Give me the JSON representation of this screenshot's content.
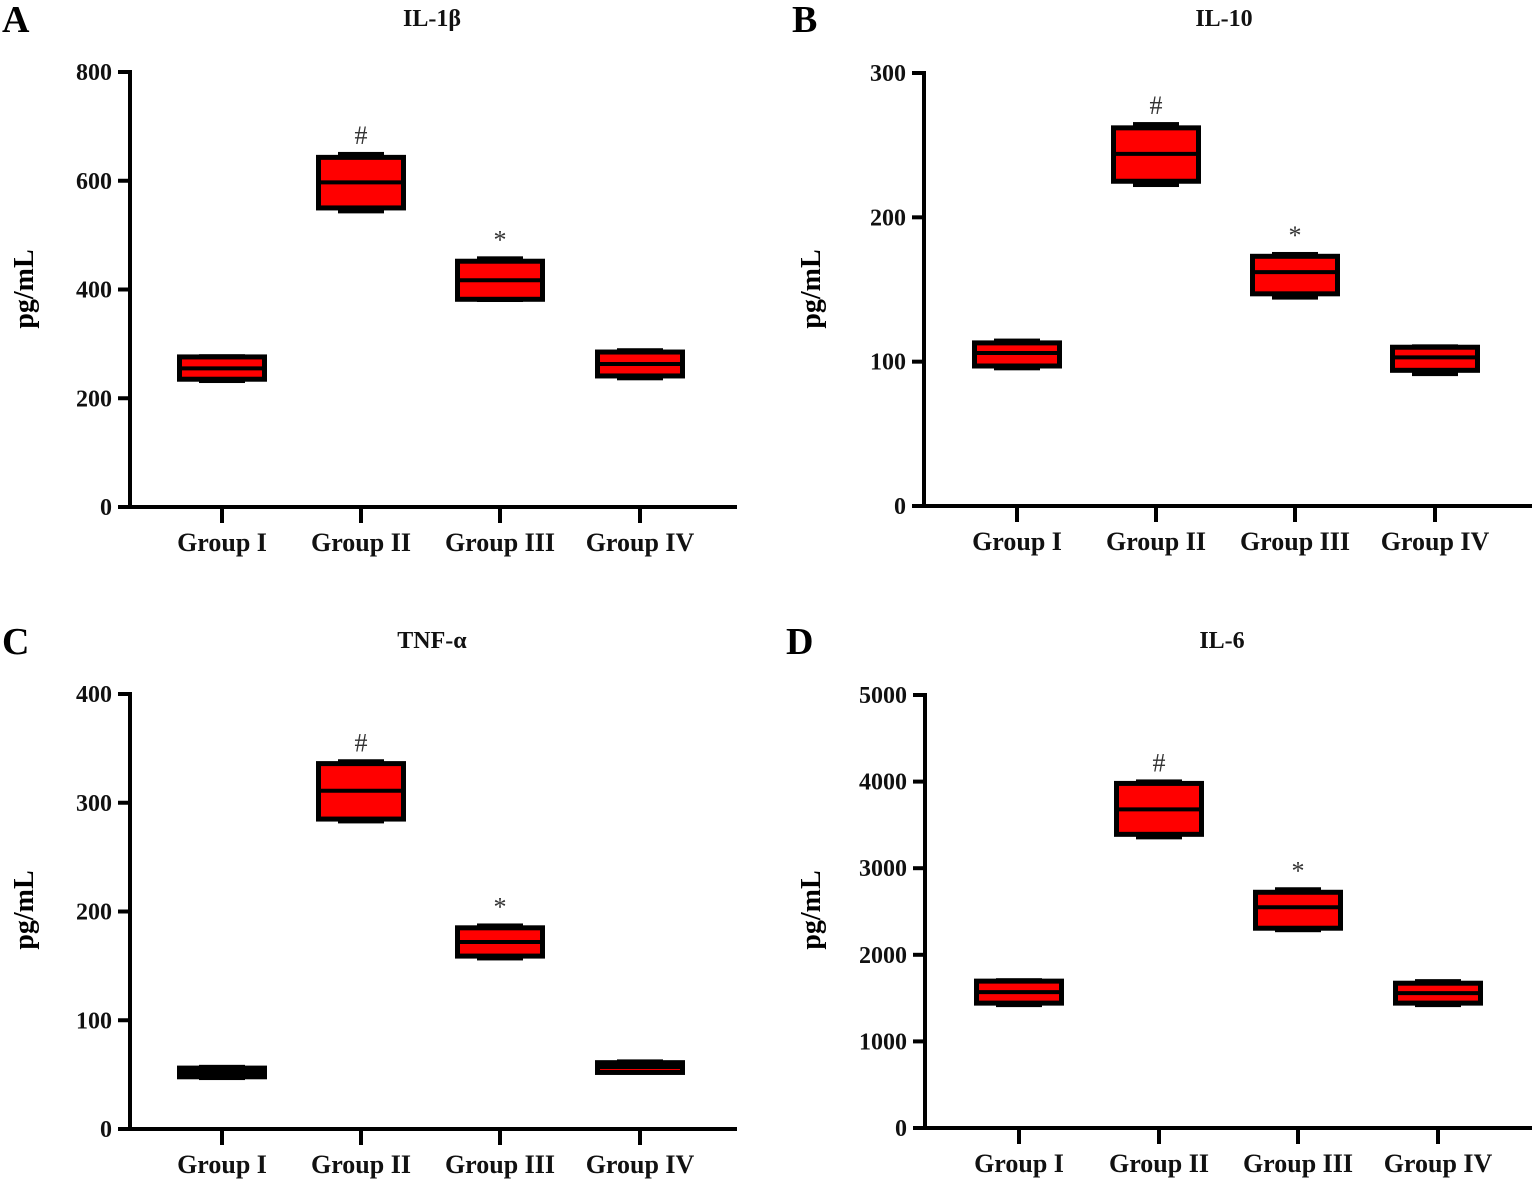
{
  "figure": {
    "box_fill": "#ff0000",
    "box_stroke": "#000000",
    "axis_color": "#000000"
  },
  "chart_data": [
    {
      "type": "box",
      "panel": "A",
      "title": "IL-1β",
      "xlabel": "",
      "ylabel": "pg/mL",
      "ylim": [
        0,
        800
      ],
      "yticks": [
        0,
        200,
        400,
        600,
        800
      ],
      "grid": false,
      "categories": [
        "Group I",
        "Group II",
        "Group III",
        "Group IV"
      ],
      "boxes": [
        {
          "min": 228,
          "q1": 235,
          "median": 255,
          "q3": 276,
          "max": 281,
          "annotation": ""
        },
        {
          "min": 540,
          "q1": 550,
          "median": 597,
          "q3": 643,
          "max": 653,
          "annotation": "#"
        },
        {
          "min": 377,
          "q1": 382,
          "median": 417,
          "q3": 452,
          "max": 461,
          "annotation": "*"
        },
        {
          "min": 233,
          "q1": 241,
          "median": 263,
          "q3": 285,
          "max": 292,
          "annotation": ""
        }
      ]
    },
    {
      "type": "box",
      "panel": "B",
      "title": "IL-10",
      "xlabel": "",
      "ylabel": "pg/mL",
      "ylim": [
        0,
        300
      ],
      "yticks": [
        0,
        100,
        200,
        300
      ],
      "grid": false,
      "categories": [
        "Group I",
        "Group II",
        "Group III",
        "Group IV"
      ],
      "boxes": [
        {
          "min": 94,
          "q1": 97,
          "median": 106,
          "q3": 113,
          "max": 116,
          "annotation": ""
        },
        {
          "min": 221,
          "q1": 225,
          "median": 244,
          "q3": 262,
          "max": 266,
          "annotation": "#"
        },
        {
          "min": 143,
          "q1": 147,
          "median": 162,
          "q3": 173,
          "max": 176,
          "annotation": "*"
        },
        {
          "min": 90,
          "q1": 94,
          "median": 103,
          "q3": 110,
          "max": 112,
          "annotation": ""
        }
      ]
    },
    {
      "type": "box",
      "panel": "C",
      "title": "TNF-α",
      "xlabel": "",
      "ylabel": "pg/mL",
      "ylim": [
        0,
        400
      ],
      "yticks": [
        0,
        100,
        200,
        300,
        400
      ],
      "grid": false,
      "categories": [
        "Group I",
        "Group II",
        "Group III",
        "Group IV"
      ],
      "boxes": [
        {
          "min": 45,
          "q1": 48,
          "median": 52,
          "q3": 56,
          "max": 59,
          "annotation": ""
        },
        {
          "min": 281,
          "q1": 285,
          "median": 311,
          "q3": 336,
          "max": 340,
          "annotation": "#"
        },
        {
          "min": 155,
          "q1": 159,
          "median": 172,
          "q3": 185,
          "max": 189,
          "annotation": "*"
        },
        {
          "min": 50,
          "q1": 52,
          "median": 57,
          "q3": 61,
          "max": 64,
          "annotation": ""
        }
      ]
    },
    {
      "type": "box",
      "panel": "D",
      "title": "IL-6",
      "xlabel": "",
      "ylabel": "pg/mL",
      "ylim": [
        0,
        5000
      ],
      "yticks": [
        0,
        1000,
        2000,
        3000,
        4000,
        5000
      ],
      "grid": false,
      "categories": [
        "Group I",
        "Group II",
        "Group III",
        "Group IV"
      ],
      "boxes": [
        {
          "min": 1396,
          "q1": 1442,
          "median": 1569,
          "q3": 1696,
          "max": 1730,
          "annotation": ""
        },
        {
          "min": 3333,
          "q1": 3391,
          "median": 3679,
          "q3": 3979,
          "max": 4025,
          "annotation": "#"
        },
        {
          "min": 2261,
          "q1": 2307,
          "median": 2549,
          "q3": 2722,
          "max": 2780,
          "annotation": "*"
        },
        {
          "min": 1396,
          "q1": 1442,
          "median": 1557,
          "q3": 1672,
          "max": 1719,
          "annotation": ""
        }
      ]
    }
  ]
}
